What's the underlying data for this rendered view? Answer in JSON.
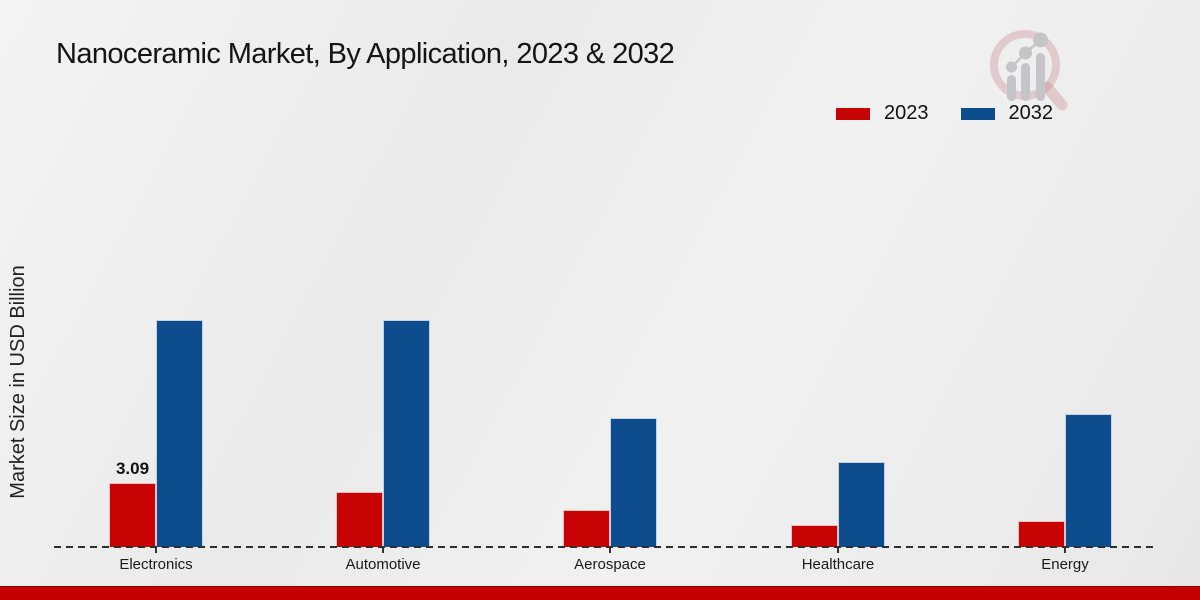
{
  "title": "Nanoceramic Market, By Application, 2023 & 2032",
  "y_axis_label": "Market Size in USD Billion",
  "legend": {
    "position": "top-right",
    "items": [
      {
        "label": "2023",
        "color": "#c80303"
      },
      {
        "label": "2032",
        "color": "#0d4d8d"
      }
    ]
  },
  "logo": {
    "name": "market-research-future-watermark"
  },
  "accent": {
    "bottom_bar_color": "#c40000",
    "background_color": "#ececec"
  },
  "chart_data": {
    "type": "bar",
    "title": "Nanoceramic Market, By Application, 2023 & 2032",
    "categories": [
      "Electronics",
      "Automotive",
      "Aerospace",
      "Healthcare",
      "Energy"
    ],
    "series": [
      {
        "name": "2023",
        "color": "#c80303",
        "values": [
          3.09,
          2.65,
          1.8,
          1.05,
          1.25
        ]
      },
      {
        "name": "2032",
        "color": "#0d4d8d",
        "values": [
          10.9,
          10.9,
          6.2,
          4.1,
          6.4
        ]
      }
    ],
    "annotations": [
      {
        "category": "Electronics",
        "series": "2023",
        "text": "3.09"
      }
    ],
    "xlabel": "",
    "ylabel": "Market Size in USD Billion",
    "ylim": [
      0,
      12
    ],
    "grid": false,
    "y_axis_ticks_visible": false,
    "legend_position": "top-right"
  }
}
